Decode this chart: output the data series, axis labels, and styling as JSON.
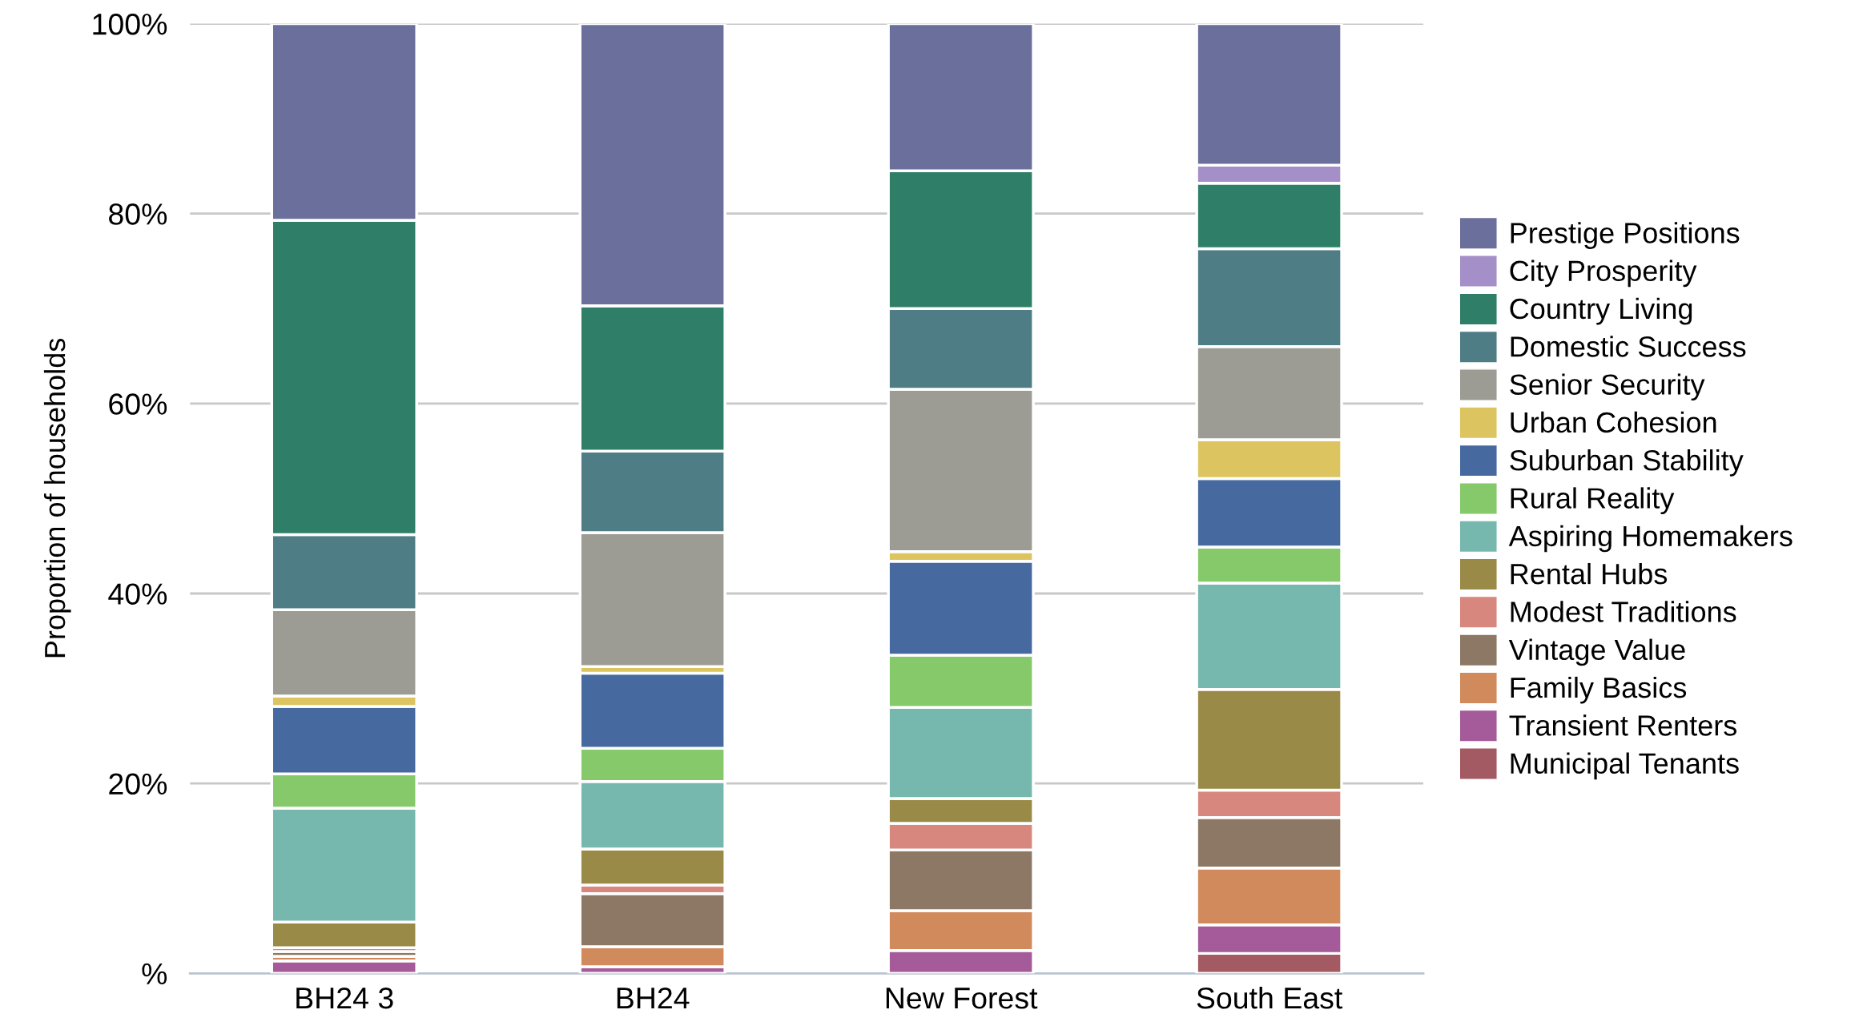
{
  "chart_data": {
    "type": "bar",
    "stacked": true,
    "ylabel": "Proportion of households",
    "categories": [
      "BH24 3",
      "BH24",
      "New Forest",
      "South East"
    ],
    "ylim": [
      0,
      100
    ],
    "yticks": [
      {
        "value": 0,
        "label": "%"
      },
      {
        "value": 20,
        "label": "20%"
      },
      {
        "value": 40,
        "label": "40%"
      },
      {
        "value": 60,
        "label": "60%"
      },
      {
        "value": 80,
        "label": "80%"
      },
      {
        "value": 100,
        "label": "100%"
      }
    ],
    "grid": "y",
    "legend": "right",
    "series": [
      {
        "name": "Municipal Tenants",
        "color": "#a35a62",
        "values": [
          0,
          0,
          0,
          2.1
        ]
      },
      {
        "name": "Transient Renters",
        "color": "#a55a9a",
        "values": [
          1.3,
          0.7,
          2.4,
          3.0
        ]
      },
      {
        "name": "Family Basics",
        "color": "#d08a5c",
        "values": [
          0.5,
          2.1,
          4.2,
          6.0
        ]
      },
      {
        "name": "Vintage Value",
        "color": "#8c7865",
        "values": [
          0.5,
          5.6,
          6.4,
          5.3
        ]
      },
      {
        "name": "Modest Traditions",
        "color": "#d8877e",
        "values": [
          0.4,
          0.9,
          2.8,
          2.9
        ]
      },
      {
        "name": "Rental Hubs",
        "color": "#9a8a48",
        "values": [
          2.7,
          3.8,
          2.6,
          10.6
        ]
      },
      {
        "name": "Aspiring Homemakers",
        "color": "#76b8ad",
        "values": [
          12.0,
          7.1,
          9.6,
          11.2
        ]
      },
      {
        "name": "Rural Reality",
        "color": "#86c96b",
        "values": [
          3.6,
          3.5,
          5.5,
          3.8
        ]
      },
      {
        "name": "Suburban Stability",
        "color": "#466aa0",
        "values": [
          7.1,
          7.9,
          9.9,
          7.2
        ]
      },
      {
        "name": "Urban Cohesion",
        "color": "#dcc560",
        "values": [
          1.1,
          0.7,
          1.0,
          4.1
        ]
      },
      {
        "name": "Senior Security",
        "color": "#9c9c94",
        "values": [
          9.1,
          14.1,
          17.1,
          9.8
        ]
      },
      {
        "name": "Domestic Success",
        "color": "#4f7d86",
        "values": [
          7.9,
          8.6,
          8.5,
          10.3
        ]
      },
      {
        "name": "Country Living",
        "color": "#2f7f68",
        "values": [
          33.1,
          15.3,
          14.5,
          6.9
        ]
      },
      {
        "name": "City Prosperity",
        "color": "#a58fc8",
        "values": [
          0,
          0,
          0,
          1.9
        ]
      },
      {
        "name": "Prestige Positions",
        "color": "#6b6f9c",
        "values": [
          20.7,
          29.7,
          15.5,
          14.9
        ]
      }
    ]
  }
}
